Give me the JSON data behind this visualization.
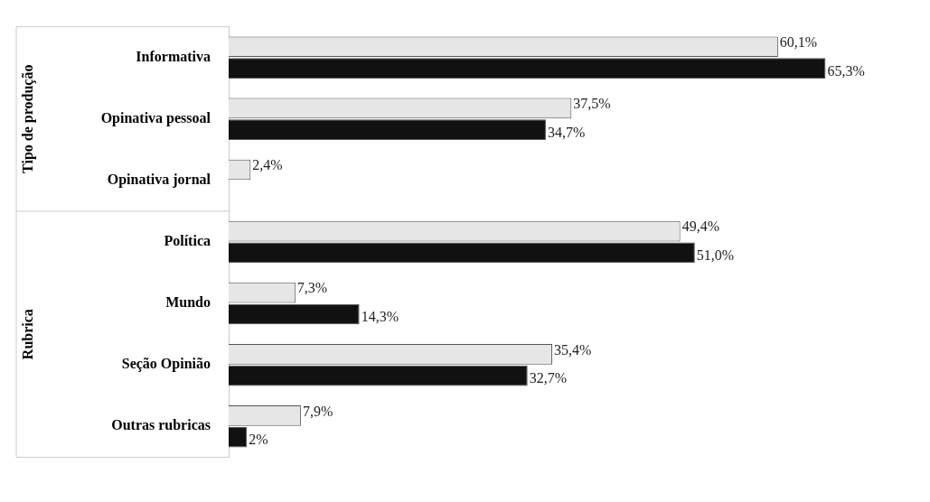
{
  "chart_data": {
    "type": "bar",
    "orientation": "horizontal",
    "categories": [
      "Informativa",
      "Opinativa pessoal",
      "Opinativa jornal",
      "Política",
      "Mundo",
      "Seção Opinião",
      "Outras rubricas"
    ],
    "annotations": [
      "Tipo de produção",
      "Rubrica"
    ],
    "series": [
      {
        "color": "#e6e6e6",
        "values": [
          60.1,
          37.5,
          2.4,
          49.4,
          7.3,
          35.4,
          7.9
        ],
        "value_labels": [
          "60,1%",
          "37,5%",
          "2,4%",
          "49,4%",
          "7,3%",
          "35,4%",
          "7,9%"
        ]
      },
      {
        "color": "#111111",
        "values": [
          65.3,
          34.7,
          null,
          51.0,
          14.3,
          32.7,
          2
        ],
        "value_labels": [
          "65,3%",
          "34,7%",
          null,
          "51,0%",
          "14,3%",
          "32,7%",
          "2%"
        ]
      }
    ],
    "legend": false
  }
}
